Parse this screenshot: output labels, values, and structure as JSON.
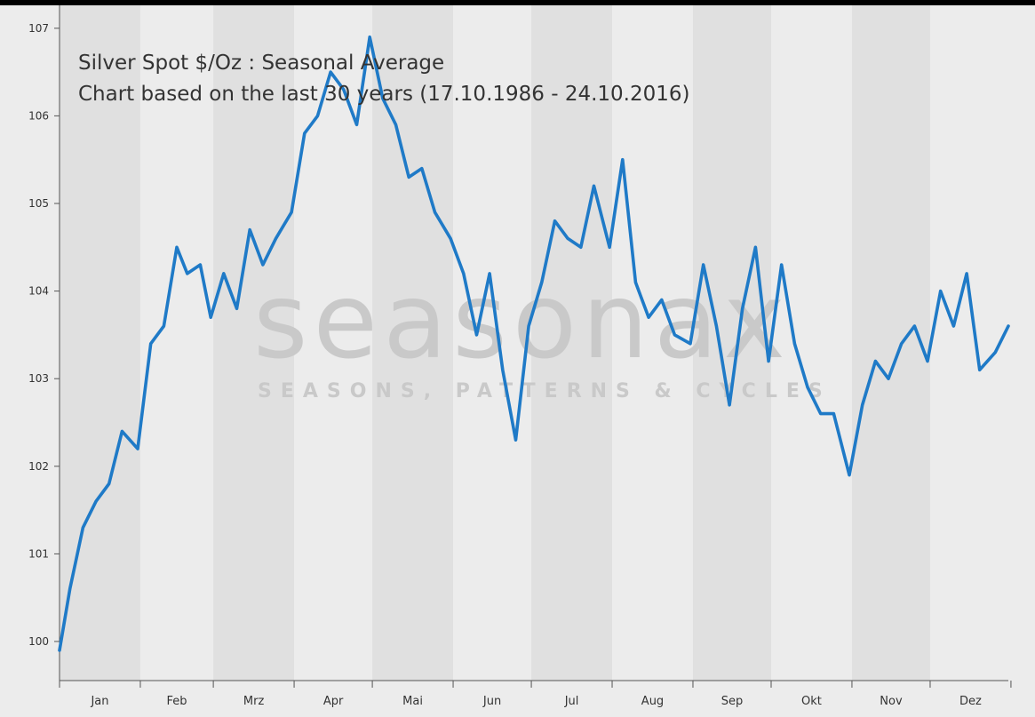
{
  "watermark": {
    "brand": "seasonax",
    "tagline": "SEASONS, PATTERNS & CYCLES"
  },
  "chart_data": {
    "type": "line",
    "title": "Silver Spot  $/Oz : Seasonal Average",
    "subtitle": "Chart based on the last 30 years (17.10.1986 - 24.10.2016)",
    "xlabel": "",
    "ylabel": "",
    "ylim": [
      99.5,
      107.3
    ],
    "yticks": [
      100,
      101,
      102,
      103,
      104,
      105,
      106,
      107
    ],
    "months": [
      "Jan",
      "Feb",
      "Mrz",
      "Apr",
      "Mai",
      "Jun",
      "Jul",
      "Aug",
      "Sep",
      "Okt",
      "Nov",
      "Dez"
    ],
    "grid": false,
    "line_color": "#1f7ac7",
    "band_colors": [
      "#e0e0e0",
      "#ececec"
    ],
    "series": [
      {
        "name": "",
        "x_day_of_year": [
          1,
          5,
          10,
          15,
          20,
          25,
          31,
          36,
          41,
          46,
          50,
          55,
          59,
          64,
          69,
          74,
          79,
          84,
          90,
          95,
          100,
          105,
          110,
          115,
          120,
          125,
          130,
          135,
          140,
          145,
          151,
          156,
          161,
          166,
          171,
          176,
          181,
          186,
          191,
          196,
          201,
          206,
          212,
          217,
          222,
          227,
          232,
          237,
          243,
          248,
          253,
          258,
          263,
          268,
          273,
          278,
          283,
          288,
          293,
          298,
          304,
          309,
          314,
          319,
          324,
          329,
          334,
          339,
          344,
          349,
          354,
          360,
          365
        ],
        "values": [
          99.9,
          100.6,
          101.3,
          101.6,
          101.8,
          102.4,
          102.2,
          103.4,
          103.6,
          104.5,
          104.2,
          104.3,
          103.7,
          104.2,
          103.8,
          104.7,
          104.3,
          104.6,
          104.9,
          105.8,
          106.0,
          106.5,
          106.3,
          105.9,
          106.9,
          106.2,
          105.9,
          105.3,
          105.4,
          104.9,
          104.6,
          104.2,
          103.5,
          104.2,
          103.1,
          102.3,
          103.6,
          104.1,
          104.8,
          104.6,
          104.5,
          105.2,
          104.5,
          105.5,
          104.1,
          103.7,
          103.9,
          103.5,
          103.4,
          104.3,
          103.6,
          102.7,
          103.8,
          104.5,
          103.2,
          104.3,
          103.4,
          102.9,
          102.6,
          102.6,
          101.9,
          102.7,
          103.2,
          103.0,
          103.4,
          103.6,
          103.2,
          104.0,
          103.6,
          104.2,
          103.1,
          103.3,
          103.6
        ]
      }
    ]
  }
}
